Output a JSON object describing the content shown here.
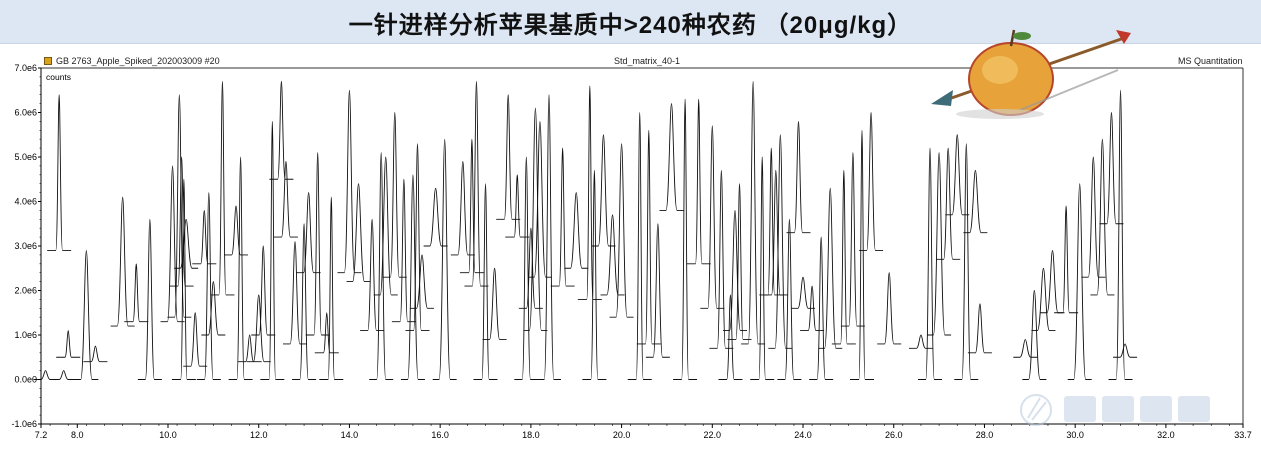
{
  "banner": {
    "title": "一针进样分析苹果基质中>240种农药 （20μg/kg）"
  },
  "header": {
    "file_label": "GB 2763_Apple_Spiked_202003009 #20",
    "center_label": "Std_matrix_40-1",
    "right_label": "MS Quantitation"
  },
  "chart_data": {
    "type": "line",
    "title": "",
    "xlabel": "",
    "ylabel": "counts",
    "xlim": [
      7.2,
      33.7
    ],
    "ylim": [
      -1000000,
      7000000
    ],
    "x_ticks": [
      "7.2",
      "8.0",
      "10.0",
      "12.0",
      "14.0",
      "16.0",
      "18.0",
      "20.0",
      "22.0",
      "24.0",
      "26.0",
      "28.0",
      "30.0",
      "32.0",
      "33.7"
    ],
    "y_ticks": [
      "-1.0e6",
      "0.0e0",
      "1.0e6",
      "2.0e6",
      "3.0e6",
      "4.0e6",
      "5.0e6",
      "6.0e6",
      "7.0e6"
    ],
    "series": [
      {
        "values": [
          [
            7.3,
            0
          ],
          [
            7.6,
            6400000
          ],
          [
            7.7,
            0
          ],
          [
            7.8,
            1100000
          ],
          [
            8.2,
            2900000
          ],
          [
            8.4,
            750000
          ],
          [
            9.0,
            4100000
          ],
          [
            9.3,
            2600000
          ],
          [
            9.6,
            3600000
          ],
          [
            10.1,
            4800000
          ],
          [
            10.25,
            6400000
          ],
          [
            10.3,
            5000000
          ],
          [
            10.35,
            4500000
          ],
          [
            10.4,
            3600000
          ],
          [
            10.6,
            1500000
          ],
          [
            10.8,
            3800000
          ],
          [
            10.9,
            4200000
          ],
          [
            11.0,
            2200000
          ],
          [
            11.2,
            6700000
          ],
          [
            11.5,
            3900000
          ],
          [
            11.6,
            5000000
          ],
          [
            11.8,
            1000000
          ],
          [
            12.0,
            1900000
          ],
          [
            12.1,
            3000000
          ],
          [
            12.3,
            5800000
          ],
          [
            12.5,
            6700000
          ],
          [
            12.6,
            4900000
          ],
          [
            12.8,
            3100000
          ],
          [
            13.0,
            3500000
          ],
          [
            13.1,
            4200000
          ],
          [
            13.3,
            5100000
          ],
          [
            13.5,
            1500000
          ],
          [
            13.6,
            4100000
          ],
          [
            14.0,
            6500000
          ],
          [
            14.2,
            4400000
          ],
          [
            14.5,
            3600000
          ],
          [
            14.7,
            5100000
          ],
          [
            14.8,
            5000000
          ],
          [
            15.0,
            6000000
          ],
          [
            15.2,
            4500000
          ],
          [
            15.4,
            4600000
          ],
          [
            15.5,
            5300000
          ],
          [
            15.6,
            2800000
          ],
          [
            15.9,
            4300000
          ],
          [
            16.1,
            5400000
          ],
          [
            16.5,
            4900000
          ],
          [
            16.7,
            5400000
          ],
          [
            16.8,
            6700000
          ],
          [
            17.0,
            4400000
          ],
          [
            17.2,
            2500000
          ],
          [
            17.5,
            6400000
          ],
          [
            17.7,
            4600000
          ],
          [
            17.9,
            5000000
          ],
          [
            18.0,
            3400000
          ],
          [
            18.1,
            6100000
          ],
          [
            18.2,
            5800000
          ],
          [
            18.4,
            6400000
          ],
          [
            18.7,
            5200000
          ],
          [
            19.0,
            4200000
          ],
          [
            19.3,
            6600000
          ],
          [
            19.4,
            4700000
          ],
          [
            19.6,
            5500000
          ],
          [
            19.8,
            3700000
          ],
          [
            20.0,
            5300000
          ],
          [
            20.4,
            6000000
          ],
          [
            20.6,
            5600000
          ],
          [
            20.8,
            3500000
          ],
          [
            21.1,
            6200000
          ],
          [
            21.4,
            6300000
          ],
          [
            21.7,
            6300000
          ],
          [
            22.0,
            5700000
          ],
          [
            22.2,
            4700000
          ],
          [
            22.4,
            1900000
          ],
          [
            22.5,
            3800000
          ],
          [
            22.6,
            4400000
          ],
          [
            22.9,
            6700000
          ],
          [
            23.1,
            5000000
          ],
          [
            23.3,
            5200000
          ],
          [
            23.4,
            4700000
          ],
          [
            23.5,
            5500000
          ],
          [
            23.7,
            3600000
          ],
          [
            23.9,
            5800000
          ],
          [
            24.0,
            2300000
          ],
          [
            24.2,
            2100000
          ],
          [
            24.4,
            3200000
          ],
          [
            24.6,
            4300000
          ],
          [
            24.9,
            4700000
          ],
          [
            25.1,
            5100000
          ],
          [
            25.3,
            5600000
          ],
          [
            25.5,
            6000000
          ],
          [
            25.9,
            2400000
          ],
          [
            26.6,
            1000000
          ],
          [
            26.8,
            5200000
          ],
          [
            27.0,
            5100000
          ],
          [
            27.2,
            5200000
          ],
          [
            27.4,
            5500000
          ],
          [
            27.6,
            5300000
          ],
          [
            27.8,
            4700000
          ],
          [
            27.9,
            1700000
          ],
          [
            28.9,
            900000
          ],
          [
            29.1,
            2000000
          ],
          [
            29.3,
            2500000
          ],
          [
            29.5,
            2900000
          ],
          [
            29.8,
            3900000
          ],
          [
            30.1,
            4400000
          ],
          [
            30.4,
            5000000
          ],
          [
            30.6,
            5400000
          ],
          [
            30.8,
            6000000
          ],
          [
            31.0,
            6500000
          ],
          [
            31.1,
            800000
          ]
        ]
      }
    ],
    "grid": false,
    "legend": "none"
  }
}
